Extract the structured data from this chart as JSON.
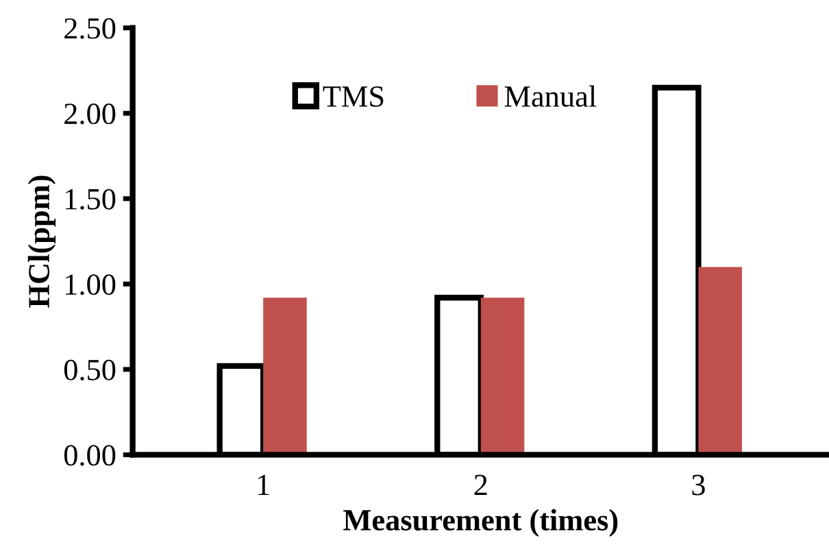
{
  "chart_data": {
    "type": "bar",
    "xlabel": "Measurement (times)",
    "ylabel": "HCl(ppm)",
    "categories": [
      "1",
      "2",
      "3"
    ],
    "series": [
      {
        "name": "TMS",
        "color": "#ffffff",
        "values": [
          0.52,
          0.92,
          2.15
        ]
      },
      {
        "name": "Manual",
        "color": "#c0504d",
        "values": [
          0.92,
          0.92,
          1.1
        ]
      }
    ],
    "ylim": [
      0,
      2.5
    ],
    "yticks": [
      {
        "value": 0,
        "label": "0.00"
      },
      {
        "value": 0.5,
        "label": "0.50"
      },
      {
        "value": 1.0,
        "label": "1.00"
      },
      {
        "value": 1.5,
        "label": "1.50"
      },
      {
        "value": 2.0,
        "label": "2.00"
      },
      {
        "value": 2.5,
        "label": "2.50"
      }
    ],
    "grid": false,
    "legend": "top"
  }
}
